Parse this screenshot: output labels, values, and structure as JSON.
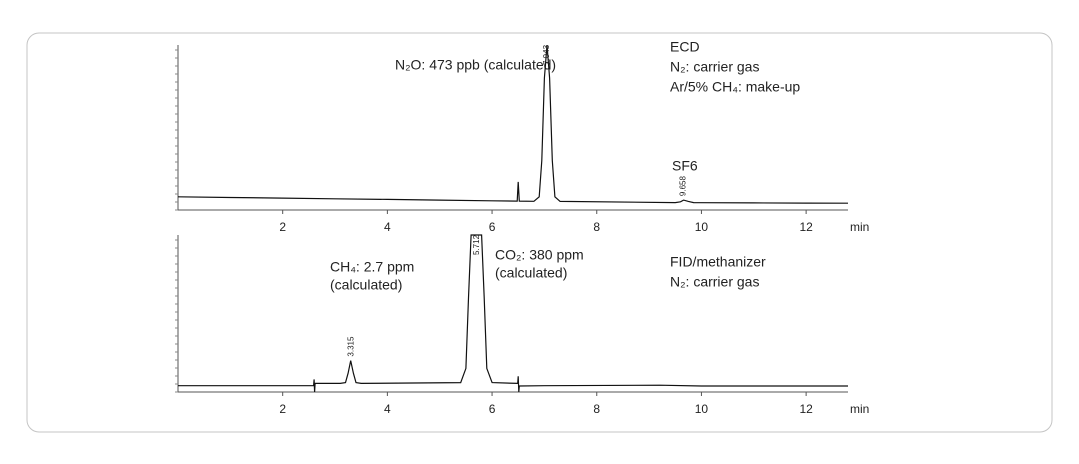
{
  "chart_data": [
    {
      "type": "line",
      "color": "#111111",
      "annotations": [
        "N₂O: 473 ppb (calculated)",
        "ECD",
        "N₂: carrier gas",
        "Ar/5% CH₄: make-up",
        "SF6"
      ],
      "x": [
        0,
        1,
        2,
        3,
        4,
        5,
        6,
        6.48,
        6.5,
        6.52,
        6.8,
        6.9,
        6.95,
        7.0,
        7.05,
        7.1,
        7.15,
        7.2,
        7.3,
        9.5,
        9.6,
        9.66,
        9.75,
        9.85,
        10,
        11,
        12,
        12.8
      ],
      "values": [
        8,
        7.6,
        7.2,
        6.8,
        6.4,
        6,
        5.6,
        5.4,
        17,
        5.4,
        5.3,
        8,
        30,
        80,
        100,
        80,
        30,
        8,
        5.2,
        4.5,
        5,
        6,
        5.2,
        4.5,
        4.4,
        4.3,
        4.2,
        4.1
      ],
      "xlim": [
        0,
        12.8
      ],
      "ylim": [
        0,
        100
      ],
      "xticks": [
        2,
        4,
        6,
        8,
        10,
        12
      ],
      "x_label": "min",
      "peak_labels": [
        7.043,
        9.658
      ]
    },
    {
      "type": "line",
      "color": "#111111",
      "annotations": [
        "CH₄: 2.7 ppm",
        "(calculated)",
        "CO₂: 380 ppm",
        "(calculated)",
        "FID/methanizer",
        "N₂: carrier gas"
      ],
      "x": [
        0,
        1,
        1.9,
        2,
        2.1,
        2.59,
        2.6,
        2.61,
        2.62,
        3.1,
        3.2,
        3.25,
        3.3,
        3.35,
        3.4,
        3.5,
        4.8,
        5.4,
        5.5,
        5.55,
        5.6,
        5.7,
        5.8,
        5.85,
        5.9,
        6.0,
        6.49,
        6.5,
        6.51,
        6.52,
        7,
        9.2,
        10,
        12,
        12.8
      ],
      "values": [
        4,
        4,
        4,
        4,
        4,
        4,
        8,
        0,
        5.5,
        5.5,
        6,
        12,
        20,
        12,
        6,
        5.5,
        5.8,
        6,
        15,
        60,
        100,
        100,
        100,
        60,
        15,
        6,
        5.5,
        10,
        0,
        3.8,
        4,
        4.3,
        3.8,
        3.8,
        3.8
      ],
      "xlim": [
        0,
        12.8
      ],
      "ylim": [
        0,
        100
      ],
      "xticks": [
        2,
        4,
        6,
        8,
        10,
        12
      ],
      "x_label": "min",
      "peak_labels": [
        3.315,
        5.712
      ]
    }
  ]
}
